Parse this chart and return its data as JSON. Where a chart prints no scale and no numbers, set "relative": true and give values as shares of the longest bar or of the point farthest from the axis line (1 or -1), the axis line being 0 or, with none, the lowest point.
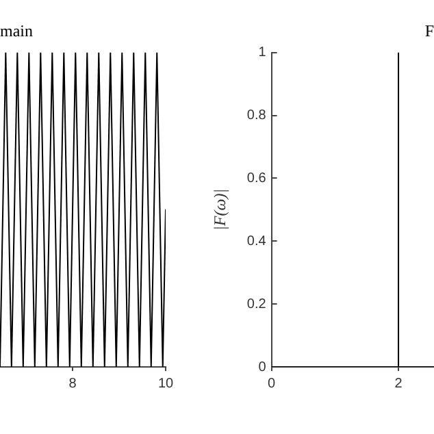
{
  "chart_data": [
    {
      "type": "line",
      "title": "main",
      "relative": true,
      "tick_labels": "x",
      "xlim": [
        6.44,
        10
      ],
      "xticks": [
        8,
        10
      ],
      "series": [
        {
          "color": "#000000",
          "x": [
            6.44,
            6.5625,
            6.6875,
            6.8125,
            6.9375,
            7.0625,
            7.1875,
            7.3125,
            7.4375,
            7.5625,
            7.6875,
            7.8125,
            7.9375,
            8.0625,
            8.1875,
            8.3125,
            8.4375,
            8.5625,
            8.6875,
            8.8125,
            8.9375,
            9.0625,
            9.1875,
            9.3125,
            9.4375,
            9.5625,
            9.6875,
            9.8125,
            9.9375,
            10
          ],
          "values": [
            0,
            1,
            0,
            1,
            0,
            1,
            0,
            1,
            0,
            1,
            0,
            1,
            0,
            1,
            0,
            1,
            0,
            1,
            0,
            1,
            0,
            1,
            0,
            1,
            0,
            1,
            0,
            1,
            0,
            0.5
          ]
        }
      ]
    },
    {
      "type": "line",
      "title": "F",
      "ylabel": "|F(ω)|",
      "xlim": [
        0,
        2.56
      ],
      "xticks": [
        0,
        2
      ],
      "ylim": [
        0,
        1
      ],
      "yticks": [
        0,
        0.2,
        0.4,
        0.6,
        0.8,
        1
      ],
      "series": [
        {
          "color": "#000000",
          "x": [
            0,
            2,
            2,
            2,
            2.56
          ],
          "values": [
            0,
            0,
            1,
            0,
            0
          ]
        }
      ]
    }
  ]
}
